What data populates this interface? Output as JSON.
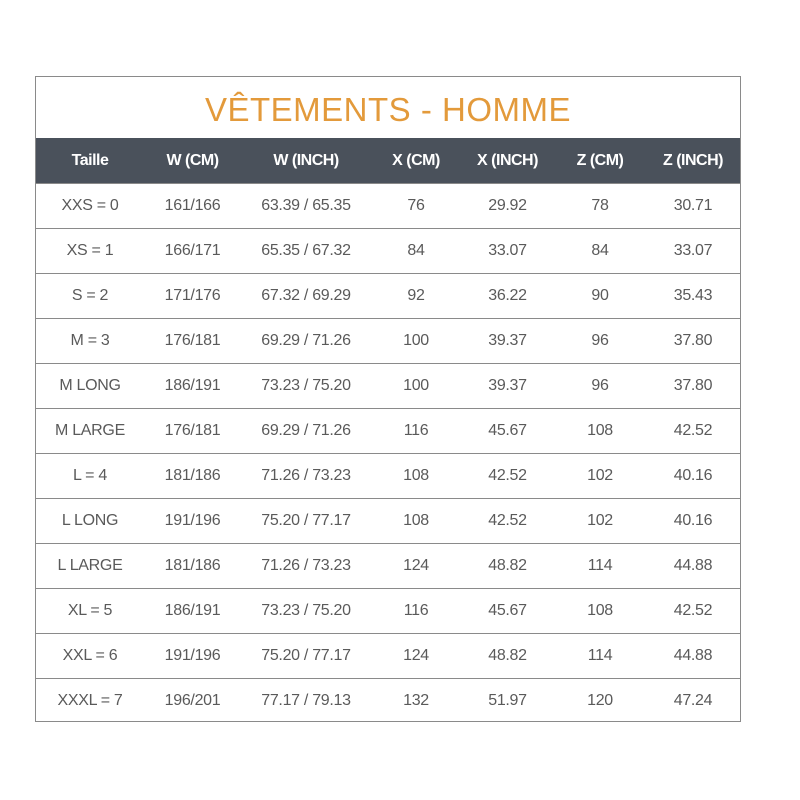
{
  "title": "VÊTEMENTS - HOMME",
  "colors": {
    "title": "#e39a3b",
    "header_bg": "#4a515b",
    "header_text": "#ffffff",
    "cell_text": "#5a5a5a"
  },
  "headers": [
    "Taille",
    "W (CM)",
    "W (INCH)",
    "X (CM)",
    "X (INCH)",
    "Z (CM)",
    "Z (INCH)"
  ],
  "rows": [
    [
      "XXS = 0",
      "161/166",
      "63.39 / 65.35",
      "76",
      "29.92",
      "78",
      "30.71"
    ],
    [
      "XS = 1",
      "166/171",
      "65.35 / 67.32",
      "84",
      "33.07",
      "84",
      "33.07"
    ],
    [
      "S = 2",
      "171/176",
      "67.32 / 69.29",
      "92",
      "36.22",
      "90",
      "35.43"
    ],
    [
      "M = 3",
      "176/181",
      "69.29 / 71.26",
      "100",
      "39.37",
      "96",
      "37.80"
    ],
    [
      "M LONG",
      "186/191",
      "73.23 / 75.20",
      "100",
      "39.37",
      "96",
      "37.80"
    ],
    [
      "M LARGE",
      "176/181",
      "69.29 / 71.26",
      "116",
      "45.67",
      "108",
      "42.52"
    ],
    [
      "L = 4",
      "181/186",
      "71.26 / 73.23",
      "108",
      "42.52",
      "102",
      "40.16"
    ],
    [
      "L LONG",
      "191/196",
      "75.20 / 77.17",
      "108",
      "42.52",
      "102",
      "40.16"
    ],
    [
      "L LARGE",
      "181/186",
      "71.26 / 73.23",
      "124",
      "48.82",
      "114",
      "44.88"
    ],
    [
      "XL = 5",
      "186/191",
      "73.23 / 75.20",
      "116",
      "45.67",
      "108",
      "42.52"
    ],
    [
      "XXL = 6",
      "191/196",
      "75.20 / 77.17",
      "124",
      "48.82",
      "114",
      "44.88"
    ],
    [
      "XXXL = 7",
      "196/201",
      "77.17 / 79.13",
      "132",
      "51.97",
      "120",
      "47.24"
    ]
  ]
}
